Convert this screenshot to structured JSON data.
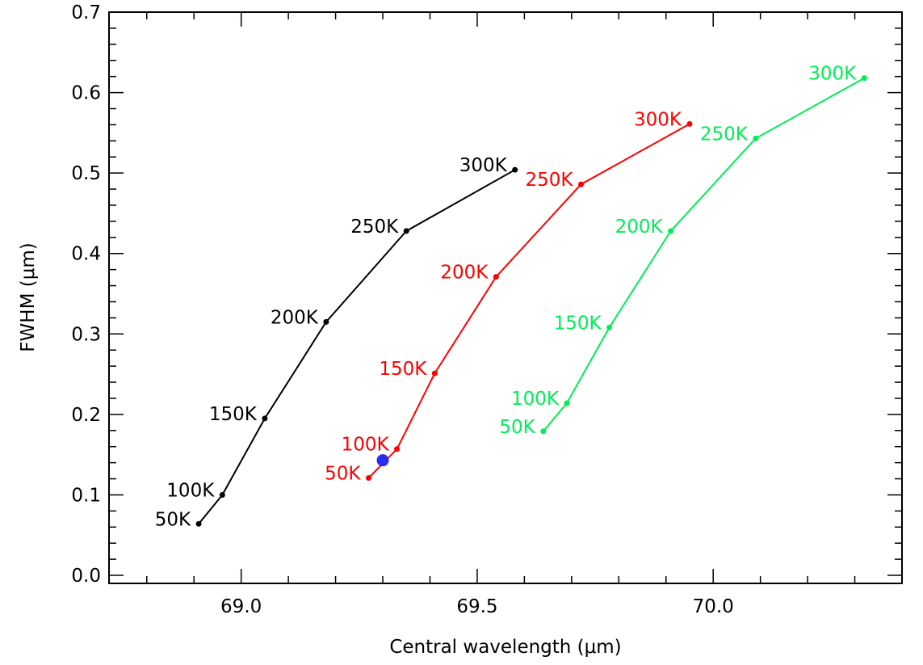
{
  "chart_data": {
    "type": "line",
    "xlabel": "Central wavelength (μm)",
    "ylabel": "FWHM (μm)",
    "xlim": [
      68.72,
      70.4
    ],
    "ylim": [
      -0.01,
      0.7
    ],
    "x_ticks": [
      69.0,
      69.5,
      70.0
    ],
    "x_tick_labels": [
      "69.0",
      "69.5",
      "70.0"
    ],
    "x_minor_step": 0.1,
    "y_ticks": [
      0.0,
      0.1,
      0.2,
      0.3,
      0.4,
      0.5,
      0.6,
      0.7
    ],
    "y_tick_labels": [
      "0.0",
      "0.1",
      "0.2",
      "0.3",
      "0.4",
      "0.5",
      "0.6",
      "0.7"
    ],
    "y_minor_step": 0.02,
    "grid": false,
    "series": [
      {
        "color": "#000000",
        "points": [
          {
            "x": 68.91,
            "y": 0.064,
            "label": "50K"
          },
          {
            "x": 68.96,
            "y": 0.1,
            "label": "100K"
          },
          {
            "x": 69.05,
            "y": 0.195,
            "label": "150K"
          },
          {
            "x": 69.18,
            "y": 0.315,
            "label": "200K"
          },
          {
            "x": 69.35,
            "y": 0.428,
            "label": "250K"
          },
          {
            "x": 69.58,
            "y": 0.504,
            "label": "300K"
          }
        ]
      },
      {
        "color": "#ff0000",
        "points": [
          {
            "x": 69.27,
            "y": 0.121,
            "label": "50K"
          },
          {
            "x": 69.33,
            "y": 0.157,
            "label": "100K"
          },
          {
            "x": 69.41,
            "y": 0.251,
            "label": "150K"
          },
          {
            "x": 69.54,
            "y": 0.371,
            "label": "200K"
          },
          {
            "x": 69.72,
            "y": 0.486,
            "label": "250K"
          },
          {
            "x": 69.95,
            "y": 0.561,
            "label": "300K"
          }
        ]
      },
      {
        "color": "#00ee55",
        "points": [
          {
            "x": 69.64,
            "y": 0.179,
            "label": "50K"
          },
          {
            "x": 69.69,
            "y": 0.214,
            "label": "100K"
          },
          {
            "x": 69.78,
            "y": 0.308,
            "label": "150K"
          },
          {
            "x": 69.91,
            "y": 0.428,
            "label": "200K"
          },
          {
            "x": 70.09,
            "y": 0.543,
            "label": "250K"
          },
          {
            "x": 70.32,
            "y": 0.618,
            "label": "300K"
          }
        ]
      }
    ],
    "highlight_point": {
      "x": 69.3,
      "y": 0.143,
      "color": "#2b2bf0"
    }
  }
}
